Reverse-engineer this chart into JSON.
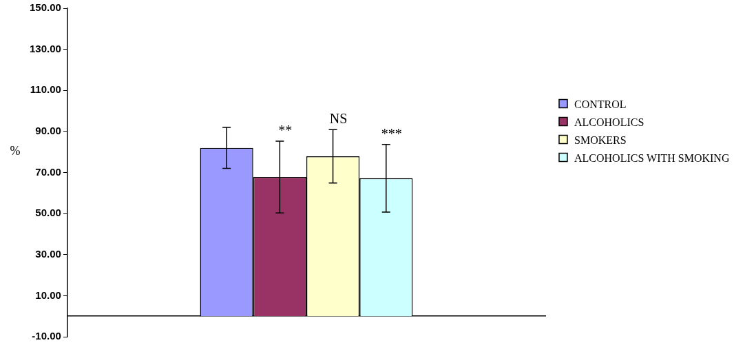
{
  "chart_data": {
    "type": "bar",
    "ylabel": "%",
    "categories": [
      null
    ],
    "series": [
      {
        "name": "CONTROL",
        "color": "#9999ff",
        "values": [
          82.0
        ],
        "errors": [
          10
        ]
      },
      {
        "name": "ALCOHOLICS",
        "color": "#993366",
        "values": [
          67.8
        ],
        "errors": [
          17.5
        ]
      },
      {
        "name": "SMOKERS",
        "color": "#ffffcc",
        "values": [
          77.9
        ],
        "errors": [
          13
        ]
      },
      {
        "name": "ALCOHOLICS WITH SMOKING",
        "color": "#ccffff",
        "values": [
          67.2
        ],
        "errors": [
          16.5
        ]
      }
    ],
    "ylim": [
      -10,
      150
    ],
    "yticks": [
      {
        "value": -10,
        "label": "-10.00"
      },
      {
        "value": 10,
        "label": "10.00"
      },
      {
        "value": 30,
        "label": "30.00"
      },
      {
        "value": 50,
        "label": "50.00"
      },
      {
        "value": 70,
        "label": "70.00"
      },
      {
        "value": 90,
        "label": "90.00"
      },
      {
        "value": 110,
        "label": "110.00"
      },
      {
        "value": 130,
        "label": "130.00"
      },
      {
        "value": 150,
        "label": "150.00"
      }
    ],
    "annotations": [
      "**",
      "NS",
      "***"
    ],
    "grid": false,
    "legend": "right"
  }
}
